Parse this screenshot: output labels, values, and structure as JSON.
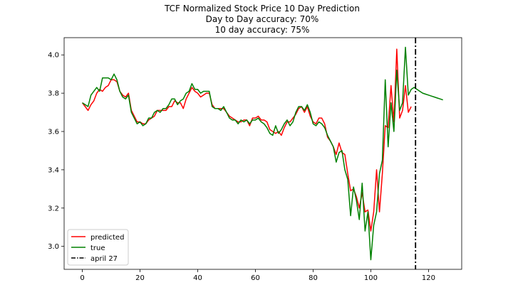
{
  "chart_data": {
    "type": "line",
    "title_lines": [
      "TCF Normalized Stock Price 10 Day Prediction",
      "Day to Day accuracy: 70%",
      "10 day accuracy: 75%"
    ],
    "xlabel": "",
    "ylabel": "",
    "xlim": [
      -6.3,
      131.5
    ],
    "ylim": [
      2.88,
      4.09
    ],
    "xticks": [
      0,
      20,
      40,
      60,
      80,
      100,
      120
    ],
    "yticks": [
      3.0,
      3.2,
      3.4,
      3.6,
      3.8,
      4.0
    ],
    "ytick_labels": [
      "3.0",
      "3.2",
      "3.4",
      "3.6",
      "3.8",
      "4.0"
    ],
    "grid": false,
    "legend_position": "lower-left",
    "vline": {
      "x": 115.5,
      "label": "april 27",
      "color": "#000000",
      "style": "dashdot"
    },
    "series": [
      {
        "name": "predicted",
        "color": "#ff0000",
        "points": [
          [
            0,
            3.75
          ],
          [
            1,
            3.73
          ],
          [
            2,
            3.71
          ],
          [
            3,
            3.74
          ],
          [
            4,
            3.76
          ],
          [
            5,
            3.8
          ],
          [
            6,
            3.82
          ],
          [
            7,
            3.81
          ],
          [
            8,
            3.83
          ],
          [
            9,
            3.84
          ],
          [
            10,
            3.87
          ],
          [
            11,
            3.87
          ],
          [
            12,
            3.86
          ],
          [
            13,
            3.81
          ],
          [
            14,
            3.79
          ],
          [
            15,
            3.78
          ],
          [
            16,
            3.8
          ],
          [
            17,
            3.71
          ],
          [
            18,
            3.68
          ],
          [
            19,
            3.65
          ],
          [
            20,
            3.65
          ],
          [
            21,
            3.64
          ],
          [
            22,
            3.64
          ],
          [
            23,
            3.66
          ],
          [
            24,
            3.67
          ],
          [
            25,
            3.68
          ],
          [
            26,
            3.71
          ],
          [
            27,
            3.71
          ],
          [
            28,
            3.71
          ],
          [
            29,
            3.71
          ],
          [
            30,
            3.73
          ],
          [
            31,
            3.73
          ],
          [
            32,
            3.76
          ],
          [
            33,
            3.75
          ],
          [
            34,
            3.75
          ],
          [
            35,
            3.72
          ],
          [
            36,
            3.77
          ],
          [
            37,
            3.8
          ],
          [
            38,
            3.83
          ],
          [
            39,
            3.81
          ],
          [
            40,
            3.8
          ],
          [
            41,
            3.78
          ],
          [
            42,
            3.79
          ],
          [
            43,
            3.8
          ],
          [
            44,
            3.8
          ],
          [
            45,
            3.74
          ],
          [
            46,
            3.72
          ],
          [
            47,
            3.72
          ],
          [
            48,
            3.72
          ],
          [
            49,
            3.72
          ],
          [
            50,
            3.7
          ],
          [
            51,
            3.68
          ],
          [
            52,
            3.67
          ],
          [
            53,
            3.66
          ],
          [
            54,
            3.65
          ],
          [
            55,
            3.65
          ],
          [
            56,
            3.66
          ],
          [
            57,
            3.66
          ],
          [
            58,
            3.63
          ],
          [
            59,
            3.67
          ],
          [
            60,
            3.67
          ],
          [
            61,
            3.68
          ],
          [
            62,
            3.66
          ],
          [
            63,
            3.66
          ],
          [
            64,
            3.65
          ],
          [
            65,
            3.61
          ],
          [
            66,
            3.6
          ],
          [
            67,
            3.59
          ],
          [
            68,
            3.6
          ],
          [
            69,
            3.58
          ],
          [
            70,
            3.62
          ],
          [
            71,
            3.65
          ],
          [
            72,
            3.65
          ],
          [
            73,
            3.67
          ],
          [
            74,
            3.69
          ],
          [
            75,
            3.72
          ],
          [
            76,
            3.73
          ],
          [
            77,
            3.7
          ],
          [
            78,
            3.73
          ],
          [
            79,
            3.68
          ],
          [
            80,
            3.65
          ],
          [
            81,
            3.64
          ],
          [
            82,
            3.67
          ],
          [
            83,
            3.67
          ],
          [
            84,
            3.64
          ],
          [
            85,
            3.57
          ],
          [
            86,
            3.55
          ],
          [
            87,
            3.52
          ],
          [
            88,
            3.48
          ],
          [
            89,
            3.54
          ],
          [
            90,
            3.49
          ],
          [
            91,
            3.48
          ],
          [
            92,
            3.38
          ],
          [
            93,
            3.29
          ],
          [
            94,
            3.3
          ],
          [
            95,
            3.26
          ],
          [
            96,
            3.2
          ],
          [
            97,
            3.28
          ],
          [
            98,
            3.18
          ],
          [
            99,
            3.19
          ],
          [
            100,
            3.08
          ],
          [
            101,
            3.18
          ],
          [
            102,
            3.4
          ],
          [
            103,
            3.18
          ],
          [
            104,
            3.38
          ],
          [
            105,
            3.63
          ],
          [
            106,
            3.62
          ],
          [
            107,
            3.84
          ],
          [
            108,
            3.65
          ],
          [
            109,
            4.03
          ],
          [
            110,
            3.67
          ],
          [
            111,
            3.71
          ],
          [
            112,
            3.84
          ],
          [
            113,
            3.7
          ],
          [
            114,
            3.73
          ]
        ]
      },
      {
        "name": "true",
        "color": "#008000",
        "points": [
          [
            0,
            3.75
          ],
          [
            1,
            3.74
          ],
          [
            2,
            3.73
          ],
          [
            3,
            3.79
          ],
          [
            4,
            3.81
          ],
          [
            5,
            3.83
          ],
          [
            6,
            3.81
          ],
          [
            7,
            3.88
          ],
          [
            8,
            3.88
          ],
          [
            9,
            3.88
          ],
          [
            10,
            3.87
          ],
          [
            11,
            3.9
          ],
          [
            12,
            3.87
          ],
          [
            13,
            3.81
          ],
          [
            14,
            3.78
          ],
          [
            15,
            3.77
          ],
          [
            16,
            3.79
          ],
          [
            17,
            3.7
          ],
          [
            18,
            3.67
          ],
          [
            19,
            3.64
          ],
          [
            20,
            3.65
          ],
          [
            21,
            3.63
          ],
          [
            22,
            3.64
          ],
          [
            23,
            3.67
          ],
          [
            24,
            3.67
          ],
          [
            25,
            3.7
          ],
          [
            26,
            3.71
          ],
          [
            27,
            3.7
          ],
          [
            28,
            3.72
          ],
          [
            29,
            3.72
          ],
          [
            30,
            3.74
          ],
          [
            31,
            3.77
          ],
          [
            32,
            3.77
          ],
          [
            33,
            3.74
          ],
          [
            34,
            3.76
          ],
          [
            35,
            3.77
          ],
          [
            36,
            3.8
          ],
          [
            37,
            3.81
          ],
          [
            38,
            3.85
          ],
          [
            39,
            3.82
          ],
          [
            40,
            3.82
          ],
          [
            41,
            3.8
          ],
          [
            42,
            3.81
          ],
          [
            43,
            3.81
          ],
          [
            44,
            3.81
          ],
          [
            45,
            3.73
          ],
          [
            46,
            3.72
          ],
          [
            47,
            3.72
          ],
          [
            48,
            3.71
          ],
          [
            49,
            3.73
          ],
          [
            50,
            3.7
          ],
          [
            51,
            3.67
          ],
          [
            52,
            3.66
          ],
          [
            53,
            3.66
          ],
          [
            54,
            3.64
          ],
          [
            55,
            3.66
          ],
          [
            56,
            3.65
          ],
          [
            57,
            3.66
          ],
          [
            58,
            3.64
          ],
          [
            59,
            3.66
          ],
          [
            60,
            3.66
          ],
          [
            61,
            3.67
          ],
          [
            62,
            3.65
          ],
          [
            63,
            3.64
          ],
          [
            64,
            3.62
          ],
          [
            65,
            3.59
          ],
          [
            66,
            3.58
          ],
          [
            67,
            3.63
          ],
          [
            68,
            3.59
          ],
          [
            69,
            3.61
          ],
          [
            70,
            3.64
          ],
          [
            71,
            3.66
          ],
          [
            72,
            3.63
          ],
          [
            73,
            3.65
          ],
          [
            74,
            3.7
          ],
          [
            75,
            3.73
          ],
          [
            76,
            3.73
          ],
          [
            77,
            3.71
          ],
          [
            78,
            3.74
          ],
          [
            79,
            3.7
          ],
          [
            80,
            3.64
          ],
          [
            81,
            3.63
          ],
          [
            82,
            3.65
          ],
          [
            83,
            3.64
          ],
          [
            84,
            3.62
          ],
          [
            85,
            3.58
          ],
          [
            86,
            3.55
          ],
          [
            87,
            3.52
          ],
          [
            88,
            3.44
          ],
          [
            89,
            3.49
          ],
          [
            90,
            3.5
          ],
          [
            91,
            3.4
          ],
          [
            92,
            3.35
          ],
          [
            93,
            3.16
          ],
          [
            94,
            3.31
          ],
          [
            95,
            3.24
          ],
          [
            96,
            3.14
          ],
          [
            97,
            3.33
          ],
          [
            98,
            3.08
          ],
          [
            99,
            3.18
          ],
          [
            100,
            2.93
          ],
          [
            101,
            3.11
          ],
          [
            102,
            3.18
          ],
          [
            103,
            3.38
          ],
          [
            104,
            3.45
          ],
          [
            105,
            3.87
          ],
          [
            106,
            3.52
          ],
          [
            107,
            3.75
          ],
          [
            108,
            3.6
          ],
          [
            109,
            3.92
          ],
          [
            110,
            3.71
          ],
          [
            111,
            3.75
          ],
          [
            112,
            4.04
          ],
          [
            113,
            3.79
          ],
          [
            114,
            3.82
          ],
          [
            115,
            3.83
          ],
          [
            116,
            3.82
          ],
          [
            117,
            3.81
          ],
          [
            118,
            3.8
          ],
          [
            119,
            3.795
          ],
          [
            120,
            3.79
          ],
          [
            121,
            3.785
          ],
          [
            122,
            3.78
          ],
          [
            123,
            3.775
          ],
          [
            124,
            3.77
          ],
          [
            125,
            3.765
          ]
        ]
      }
    ]
  }
}
